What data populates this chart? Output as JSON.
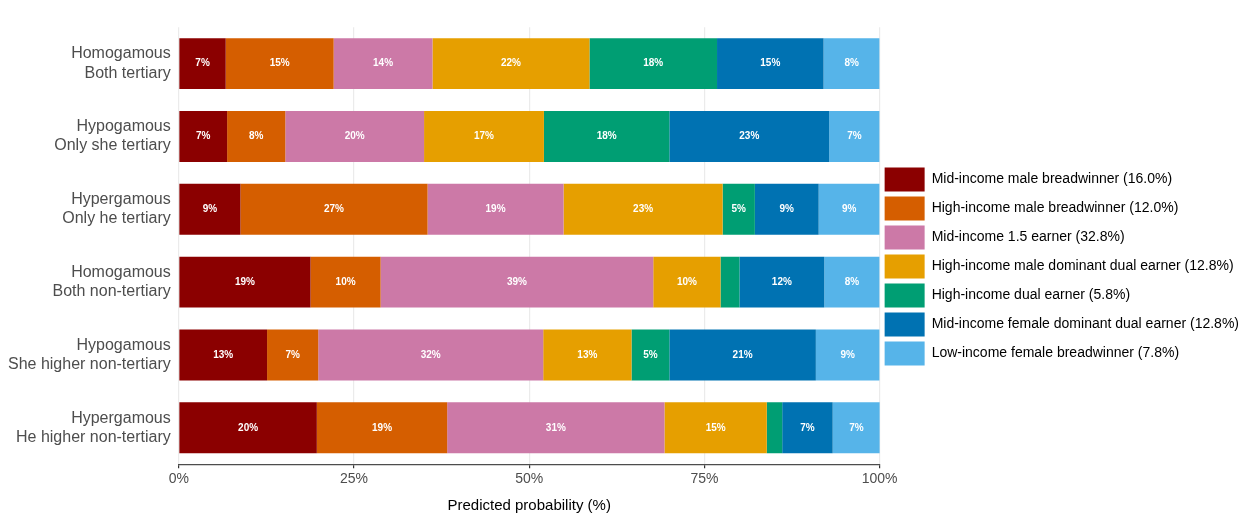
{
  "chart_data": {
    "type": "bar",
    "orientation": "horizontal",
    "stacked": true,
    "xlabel": "Predicted probability (%)",
    "categories": [
      "Homogamous\nBoth tertiary",
      "Hypogamous\nOnly she tertiary",
      "Hypergamous\nOnly he tertiary",
      "Homogamous\nBoth non-tertiary",
      "Hypogamous\nShe higher non-tertiary",
      "Hypergamous\nHe higher non-tertiary"
    ],
    "xlim": [
      0,
      100
    ],
    "xticks": [
      {
        "value": 0,
        "label": "0%"
      },
      {
        "value": 25,
        "label": "25%"
      },
      {
        "value": 50,
        "label": "50%"
      },
      {
        "value": 75,
        "label": "75%"
      },
      {
        "value": 100,
        "label": "100%"
      }
    ],
    "grid": "x",
    "legend": "right",
    "series": [
      {
        "name": "Mid-income male breadwinner (16.0%)",
        "color": "#8b0000",
        "values": [
          6.7,
          6.9,
          8.8,
          18.8,
          12.6,
          19.7
        ],
        "value_labels": [
          "7%",
          "7%",
          "9%",
          "19%",
          "13%",
          "20%"
        ]
      },
      {
        "name": "High-income male breadwinner (12.0%)",
        "color": "#d55e00",
        "values": [
          15.4,
          8.3,
          26.7,
          10.0,
          7.3,
          18.6
        ],
        "value_labels": [
          "15%",
          "8%",
          "27%",
          "10%",
          "7%",
          "19%"
        ]
      },
      {
        "name": "Mid-income 1.5 earner (32.8%)",
        "color": "#cc79a7",
        "values": [
          14.1,
          19.8,
          19.4,
          38.9,
          32.1,
          31.0
        ],
        "value_labels": [
          "14%",
          "20%",
          "19%",
          "39%",
          "32%",
          "31%"
        ]
      },
      {
        "name": "High-income male dominant dual earner (12.8%)",
        "color": "#e69f00",
        "values": [
          22.4,
          17.1,
          22.7,
          9.6,
          12.6,
          14.6
        ],
        "value_labels": [
          "22%",
          "17%",
          "23%",
          "10%",
          "13%",
          "15%"
        ]
      },
      {
        "name": "High-income dual earner (5.8%)",
        "color": "#009e73",
        "values": [
          18.2,
          17.9,
          4.6,
          2.7,
          5.4,
          2.2
        ],
        "value_labels": [
          "18%",
          "18%",
          "5%",
          null,
          "5%",
          null
        ]
      },
      {
        "name": "Mid-income female dominant dual earner (12.8%)",
        "color": "#0072b2",
        "values": [
          15.2,
          22.8,
          9.1,
          12.1,
          20.9,
          7.2
        ],
        "value_labels": [
          "15%",
          "23%",
          "9%",
          "12%",
          "21%",
          "7%"
        ]
      },
      {
        "name": "Low-income female breadwinner (7.8%)",
        "color": "#56b4e9",
        "values": [
          8.0,
          7.2,
          8.7,
          7.9,
          9.1,
          6.8
        ],
        "value_labels": [
          "8%",
          "7%",
          "9%",
          "8%",
          "9%",
          "7%"
        ]
      }
    ]
  }
}
